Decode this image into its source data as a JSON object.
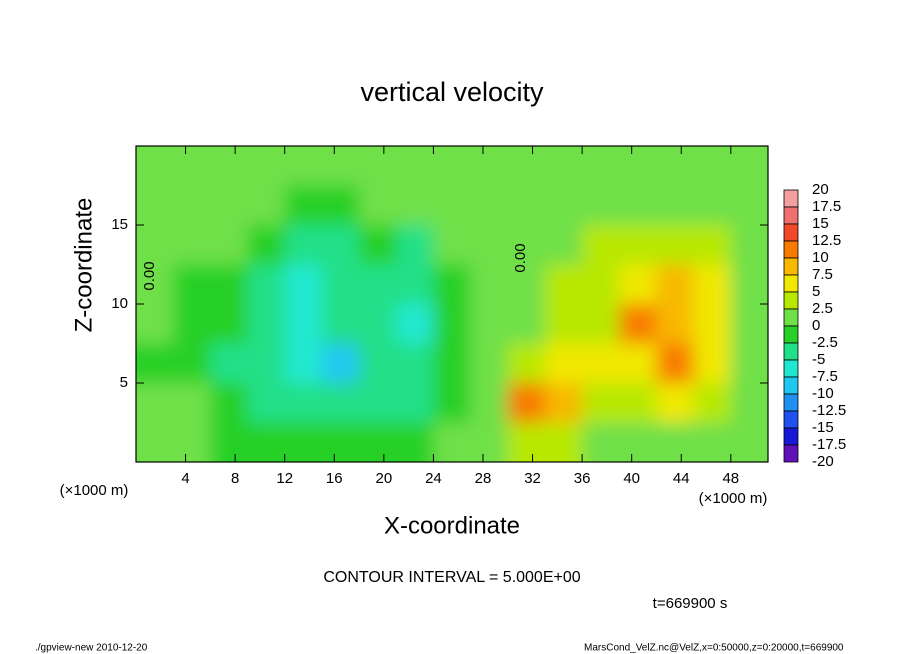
{
  "chart_data": {
    "type": "contour",
    "title": "vertical velocity",
    "xlabel": "X-coordinate",
    "ylabel": "Z-coordinate",
    "x_unit_label": "(×1000 m)",
    "y_unit_label": "(×1000 m)",
    "contour_interval": "CONTOUR INTERVAL = 5.000E+00",
    "time_label": "t=669900 s",
    "footer_left": "./gpview-new  2010-12-20",
    "footer_right": "MarsCond_VelZ.nc@VelZ,x=0:50000,z=0:20000,t=669900",
    "annotations": [
      "0.00",
      "0.00"
    ],
    "xlim": [
      0,
      51
    ],
    "ylim": [
      0,
      20
    ],
    "xticks": [
      4,
      8,
      12,
      16,
      20,
      24,
      28,
      32,
      36,
      40,
      44,
      48
    ],
    "yticks": [
      5,
      10,
      15
    ],
    "x": [
      1.5,
      4.5,
      7.5,
      10.5,
      13.5,
      16.5,
      19.5,
      22.5,
      25.5,
      28.5,
      31.5,
      34.5,
      37.5,
      40.5,
      43.5,
      46.5,
      49.5
    ],
    "z": [
      18.75,
      16.25,
      13.75,
      11.25,
      8.75,
      6.25,
      3.75,
      1.25
    ],
    "field": {
      "values": [
        [
          1,
          1,
          1,
          1,
          1,
          1,
          1,
          1,
          0.5,
          0.5,
          1,
          1,
          1,
          1,
          1,
          1,
          1
        ],
        [
          0.5,
          0.5,
          0.5,
          0.5,
          -1,
          -0.5,
          0,
          0,
          0.5,
          0.5,
          1,
          1,
          1.5,
          2,
          2,
          1.5,
          1
        ],
        [
          0,
          0,
          0,
          -1,
          -4,
          -3,
          -1,
          -3,
          0,
          0.5,
          1,
          2,
          3,
          4,
          4,
          3,
          1.5
        ],
        [
          0,
          -0.5,
          -1,
          -3,
          -6,
          -4,
          -3,
          -5,
          -1,
          0.5,
          1.5,
          3,
          4,
          7,
          8,
          5,
          2
        ],
        [
          0,
          -0.5,
          -2,
          -4,
          -7,
          -5,
          -4,
          -7,
          -2,
          0.5,
          2,
          4,
          4,
          10,
          9,
          6,
          2
        ],
        [
          -0.5,
          -0.5,
          -3,
          -5,
          -6,
          -8,
          -5,
          -5,
          -2,
          0.5,
          3,
          6,
          5,
          6,
          10,
          6,
          2
        ],
        [
          0,
          0,
          -2,
          -4,
          -5,
          -5,
          -4,
          -3,
          -1,
          0.5,
          10,
          8,
          4,
          4,
          5,
          3,
          1
        ],
        [
          0,
          0,
          -1,
          -2,
          -2,
          -2,
          -1,
          -1,
          0,
          0.5,
          4,
          4,
          2,
          2,
          2,
          1,
          0.5
        ]
      ]
    },
    "colorbar": {
      "levels": [
        20,
        17.5,
        15,
        12.5,
        10,
        7.5,
        5,
        2.5,
        0,
        -2.5,
        -5,
        -7.5,
        -10,
        -12.5,
        -15,
        -17.5,
        -20
      ],
      "colors": [
        "#f4a0a0",
        "#f07070",
        "#f04a28",
        "#f87a00",
        "#f8b800",
        "#f0e800",
        "#b8e800",
        "#70e048",
        "#28d028",
        "#20e088",
        "#20e8d0",
        "#20c8f0",
        "#2090f0",
        "#2050f0",
        "#1818d8",
        "#6010b8"
      ]
    }
  }
}
